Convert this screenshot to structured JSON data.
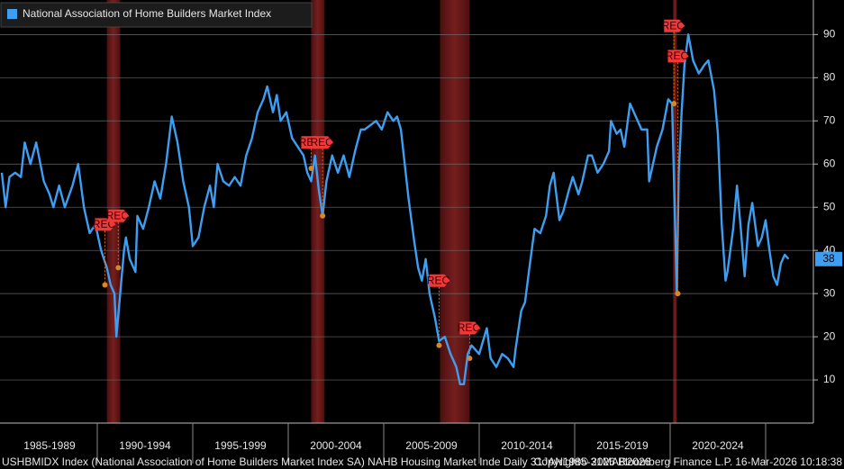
{
  "chart_data": {
    "type": "line",
    "x": [
      1985.0,
      1985.2,
      1985.4,
      1985.7,
      1986.0,
      1986.2,
      1986.5,
      1986.8,
      1987.2,
      1987.5,
      1987.7,
      1988.0,
      1988.3,
      1988.7,
      1989.0,
      1989.3,
      1989.6,
      1989.9,
      1990.2,
      1990.5,
      1990.7,
      1990.9,
      1991.0,
      1991.2,
      1991.4,
      1991.5,
      1991.7,
      1991.9,
      1992.0,
      1992.1,
      1992.4,
      1992.7,
      1993.0,
      1993.3,
      1993.6,
      1993.9,
      1994.2,
      1994.5,
      1994.8,
      1995.0,
      1995.3,
      1995.6,
      1995.9,
      1996.1,
      1996.3,
      1996.6,
      1996.9,
      1997.2,
      1997.5,
      1997.8,
      1998.1,
      1998.4,
      1998.7,
      1998.9,
      1999.2,
      1999.4,
      1999.6,
      1999.9,
      2000.2,
      2000.5,
      2000.8,
      2001.0,
      2001.2,
      2001.4,
      2001.6,
      2001.8,
      2002.0,
      2002.3,
      2002.6,
      2002.9,
      2003.2,
      2003.5,
      2003.8,
      2004.0,
      2004.3,
      2004.6,
      2004.9,
      2005.2,
      2005.5,
      2005.7,
      2005.9,
      2006.1,
      2006.3,
      2006.6,
      2006.8,
      2007.0,
      2007.2,
      2007.4,
      2007.7,
      2007.9,
      2008.2,
      2008.5,
      2008.8,
      2009.0,
      2009.2,
      2009.4,
      2009.6,
      2009.8,
      2010.0,
      2010.2,
      2010.4,
      2010.6,
      2010.9,
      2011.2,
      2011.5,
      2011.8,
      2011.9,
      2012.2,
      2012.4,
      2012.6,
      2012.9,
      2013.2,
      2013.5,
      2013.7,
      2013.9,
      2014.2,
      2014.4,
      2014.7,
      2014.9,
      2015.2,
      2015.4,
      2015.7,
      2015.9,
      2016.2,
      2016.5,
      2016.8,
      2016.9,
      2017.2,
      2017.4,
      2017.6,
      2017.9,
      2018.2,
      2018.5,
      2018.8,
      2018.9,
      2019.0,
      2019.3,
      2019.6,
      2019.9,
      2020.1,
      2020.35,
      2020.45,
      2020.6,
      2020.75,
      2020.95,
      2021.2,
      2021.5,
      2021.8,
      2022.0,
      2022.3,
      2022.5,
      2022.7,
      2022.9,
      2023.0,
      2023.3,
      2023.5,
      2023.7,
      2023.9,
      2024.1,
      2024.3,
      2024.6,
      2024.8,
      2025.0,
      2025.2,
      2025.4,
      2025.6,
      2025.8,
      2026.0,
      2026.2
    ],
    "series": [
      {
        "name": "National Association of Home Builders Market Index",
        "color": "#3d9ef2",
        "values": [
          58,
          50,
          57,
          58,
          57,
          65,
          60,
          65,
          56,
          53,
          50,
          55,
          50,
          55,
          60,
          50,
          44,
          46,
          40,
          36,
          32,
          30,
          20,
          30,
          40,
          43,
          38,
          36,
          35,
          48,
          45,
          50,
          56,
          52,
          60,
          71,
          65,
          56,
          50,
          41,
          43,
          50,
          55,
          50,
          60,
          56,
          55,
          57,
          55,
          62,
          66,
          72,
          75,
          78,
          72,
          76,
          70,
          72,
          66,
          64,
          62,
          58,
          56,
          62,
          54,
          48,
          56,
          62,
          58,
          62,
          57,
          63,
          68,
          68,
          69,
          70,
          68,
          72,
          70,
          71,
          68,
          60,
          52,
          42,
          36,
          33,
          38,
          30,
          24,
          19,
          20,
          16,
          13,
          9,
          9,
          16,
          18,
          17,
          16,
          19,
          22,
          15,
          13,
          16,
          15,
          13,
          17,
          26,
          28,
          35,
          45,
          44,
          48,
          55,
          58,
          47,
          49,
          54,
          57,
          53,
          56,
          62,
          62,
          58,
          60,
          63,
          70,
          67,
          68,
          64,
          74,
          71,
          68,
          68,
          56,
          58,
          64,
          68,
          75,
          74,
          30,
          58,
          72,
          83,
          90,
          84,
          81,
          83,
          84,
          77,
          67,
          46,
          33,
          35,
          45,
          55,
          45,
          34,
          46,
          51,
          41,
          43,
          47,
          40,
          34,
          32,
          37,
          39,
          38
        ]
      }
    ],
    "xlim": [
      1985,
      2027.5
    ],
    "xticks": [
      {
        "value": 1987.5,
        "label": "1985-1989"
      },
      {
        "value": 1992.5,
        "label": "1990-1994"
      },
      {
        "value": 1997.5,
        "label": "1995-1999"
      },
      {
        "value": 2002.5,
        "label": "2000-2004"
      },
      {
        "value": 2007.5,
        "label": "2005-2009"
      },
      {
        "value": 2012.5,
        "label": "2010-2014"
      },
      {
        "value": 2017.5,
        "label": "2015-2019"
      },
      {
        "value": 2022.5,
        "label": "2020-2024"
      }
    ],
    "ylim": [
      0,
      98
    ],
    "yticks": [
      10,
      20,
      30,
      40,
      50,
      60,
      70,
      80,
      90
    ],
    "grid": true,
    "recessions": [
      [
        1990.5,
        1991.2
      ],
      [
        2001.2,
        2001.9
      ],
      [
        2007.95,
        2009.5
      ],
      [
        2020.15,
        2020.35
      ]
    ],
    "annotations": [
      {
        "label": "REC",
        "x": 1990.4,
        "y": 46,
        "point_y": 32
      },
      {
        "label": "REC",
        "x": 1991.1,
        "y": 48,
        "point_y": 36
      },
      {
        "label": "REC",
        "x": 2001.2,
        "y": 65,
        "point_y": 59
      },
      {
        "label": "REC",
        "x": 2001.8,
        "y": 65,
        "point_y": 48
      },
      {
        "label": "REC",
        "x": 2007.9,
        "y": 33,
        "point_y": 18
      },
      {
        "label": "REC",
        "x": 2009.5,
        "y": 22,
        "point_y": 15
      },
      {
        "label": "REC",
        "x": 2020.2,
        "y": 92,
        "point_y": 74
      },
      {
        "label": "REC",
        "x": 2020.4,
        "y": 85,
        "point_y": 30
      }
    ]
  },
  "footer": {
    "left": "USHBMIDX Index (National Association of Home Builders Market Index SA) NAHB Housing Market Inde Daily 31JAN1985-31MAR2026",
    "middle": "Copyright© 2026 Bloomberg Finance L.P.",
    "right": "16-Mar-2026 10:18:38"
  }
}
